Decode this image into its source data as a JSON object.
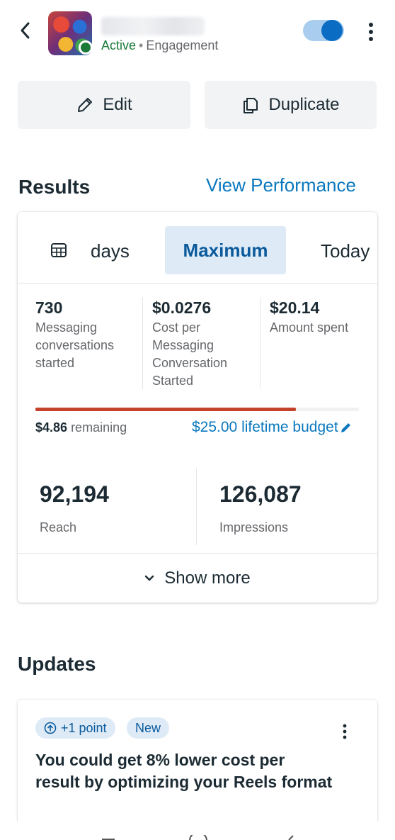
{
  "header": {
    "status": "Active",
    "status_separator": "•",
    "objective": "Engagement",
    "toggle_on": true,
    "accent_color": "#0a6cc2"
  },
  "actions": {
    "edit_label": "Edit",
    "duplicate_label": "Duplicate"
  },
  "results": {
    "title": "Results",
    "view_performance_label": "View Performance",
    "range_tabs": {
      "days_label": "days",
      "maximum_label": "Maximum",
      "today_label": "Today",
      "selected": "Maximum"
    },
    "metrics": [
      {
        "value": "730",
        "label": "Messaging conversations started"
      },
      {
        "value": "$0.0276",
        "label": "Cost per Messaging Conversation Started"
      },
      {
        "value": "$20.14",
        "label": "Amount spent"
      }
    ],
    "budget": {
      "remaining_value": "$4.86",
      "remaining_label": "remaining",
      "lifetime_label": "$25.00 lifetime budget",
      "spent_fraction": 0.806,
      "bar_color": "#c4412b"
    },
    "reach": {
      "value": "92,194",
      "label": "Reach"
    },
    "impressions": {
      "value": "126,087",
      "label": "Impressions"
    },
    "show_more_label": "Show more"
  },
  "updates": {
    "title": "Updates",
    "card": {
      "points_chip": "+1 point",
      "new_chip": "New",
      "text": "You could get 8% lower cost per result by optimizing your Reels format"
    }
  },
  "icons": {
    "back": "chevron-left-icon",
    "more": "more-vertical-icon",
    "edit": "pencil-icon",
    "duplicate": "copy-icon",
    "calendar": "table-calendar-icon",
    "chevron": "chevron-down-icon",
    "budget_edit": "pencil-icon",
    "points": "arrow-up-circle-icon"
  }
}
